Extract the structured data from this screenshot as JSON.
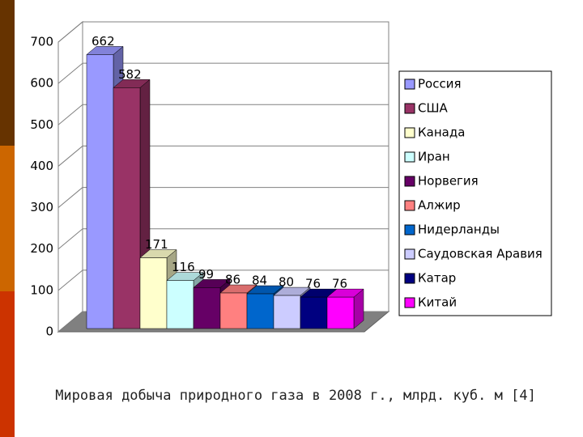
{
  "chart_data": {
    "type": "bar3d",
    "caption": "Мировая добыча природного газа в 2008 г., млрд. куб. м [4]",
    "categories": [
      "Россия",
      "США",
      "Канада",
      "Иран",
      "Норвегия",
      "Алжир",
      "Нидерланды",
      "Саудовская Аравия",
      "Катар",
      "Китай"
    ],
    "values": [
      662,
      582,
      171,
      116,
      99,
      86,
      84,
      80,
      76,
      76
    ],
    "colors": [
      "#9999ff",
      "#993366",
      "#ffffcc",
      "#ccffff",
      "#660066",
      "#ff8080",
      "#0066cc",
      "#ccccff",
      "#000080",
      "#ff00ff"
    ],
    "ylim": [
      0,
      700
    ],
    "yticks": [
      0,
      100,
      200,
      300,
      400,
      500,
      600,
      700
    ],
    "grid": true,
    "legend": "right"
  }
}
